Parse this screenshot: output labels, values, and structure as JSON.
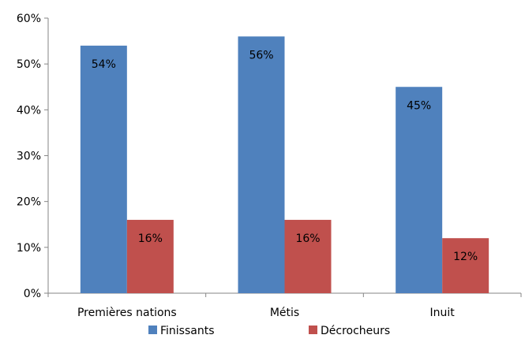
{
  "chart_data": {
    "type": "bar",
    "title": "",
    "xlabel": "",
    "ylabel": "",
    "categories": [
      "Premières nations",
      "Métis",
      "Inuit"
    ],
    "series": [
      {
        "name": "Finissants",
        "values": [
          54,
          56,
          45
        ],
        "labels": [
          "54%",
          "56%",
          "45%"
        ],
        "color": "#4f81bd"
      },
      {
        "name": "Décrocheurs",
        "values": [
          16,
          16,
          12
        ],
        "labels": [
          "16%",
          "16%",
          "12%"
        ],
        "color": "#c0504d"
      }
    ],
    "ylim": [
      0,
      60
    ],
    "yticks": [
      0,
      10,
      20,
      30,
      40,
      50,
      60
    ],
    "ytick_labels": [
      "0%",
      "10%",
      "20%",
      "30%",
      "40%",
      "50%",
      "60%"
    ],
    "grid": false,
    "legend_position": "bottom"
  }
}
